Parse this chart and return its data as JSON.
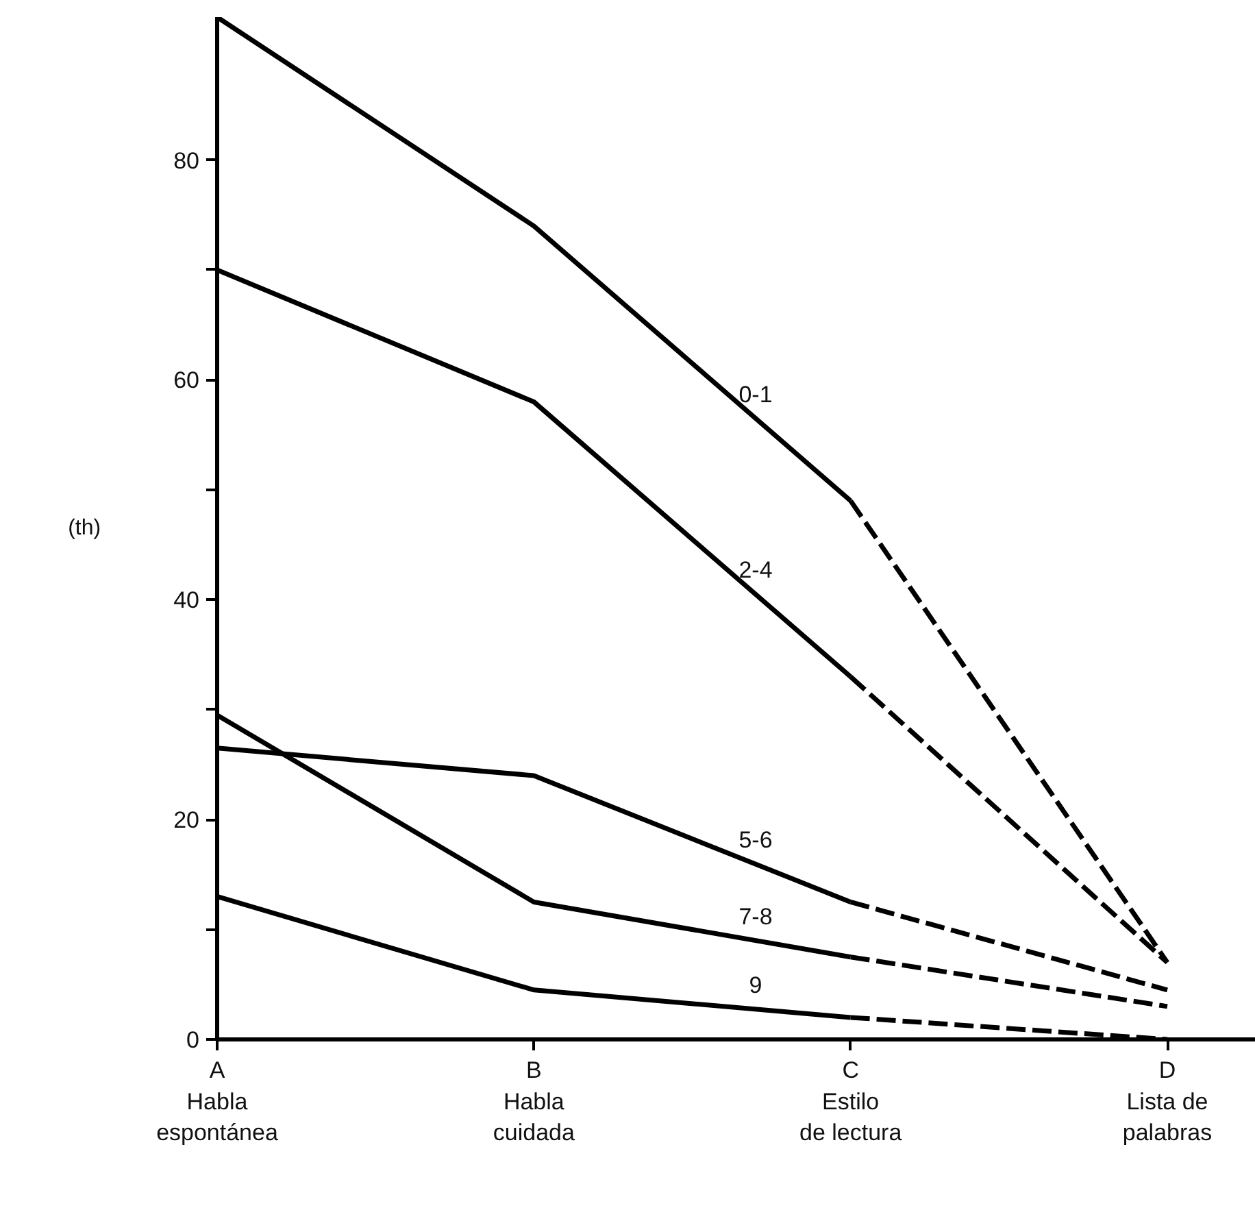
{
  "chart_data": {
    "type": "line",
    "ylabel": "(th)",
    "categories": [
      "A\nHabla\nespontánea",
      "B\nHabla\ncuidada",
      "C\nEstilo\nde lectura",
      "D\nLista de\npalabras"
    ],
    "ylim": [
      0,
      93
    ],
    "yticks": [
      0,
      {
        "value": 10,
        "label": null
      },
      20,
      {
        "value": 30,
        "label": null
      },
      40,
      {
        "value": 50,
        "label": null
      },
      60,
      {
        "value": 70,
        "label": null
      },
      80
    ],
    "grid": false,
    "marker": "none",
    "series": [
      {
        "name": "0-1",
        "color": "#000000",
        "line_style": "solid",
        "values": [
          93,
          74,
          49,
          null
        ]
      },
      {
        "color": "#000000",
        "line_style": "dashed",
        "values": [
          null,
          null,
          49,
          7
        ]
      },
      {
        "name": "2-4",
        "color": "#000000",
        "line_style": "solid",
        "values": [
          70,
          58,
          33,
          null
        ]
      },
      {
        "color": "#000000",
        "line_style": "dashed",
        "values": [
          null,
          null,
          33,
          7
        ]
      },
      {
        "name": "5-6",
        "color": "#000000",
        "line_style": "solid",
        "values": [
          26.5,
          24,
          12.5,
          null
        ]
      },
      {
        "color": "#000000",
        "line_style": "dashed",
        "values": [
          null,
          null,
          12.5,
          4.5
        ]
      },
      {
        "name": "7-8",
        "color": "#000000",
        "line_style": "solid",
        "values": [
          29.5,
          12.5,
          7.5,
          null
        ]
      },
      {
        "color": "#000000",
        "line_style": "dashed",
        "values": [
          null,
          null,
          7.5,
          3
        ]
      },
      {
        "name": "9",
        "color": "#000000",
        "line_style": "solid",
        "values": [
          13,
          4.5,
          2,
          null
        ]
      },
      {
        "color": "#000000",
        "line_style": "dashed",
        "values": [
          null,
          null,
          2,
          0
        ]
      }
    ]
  }
}
